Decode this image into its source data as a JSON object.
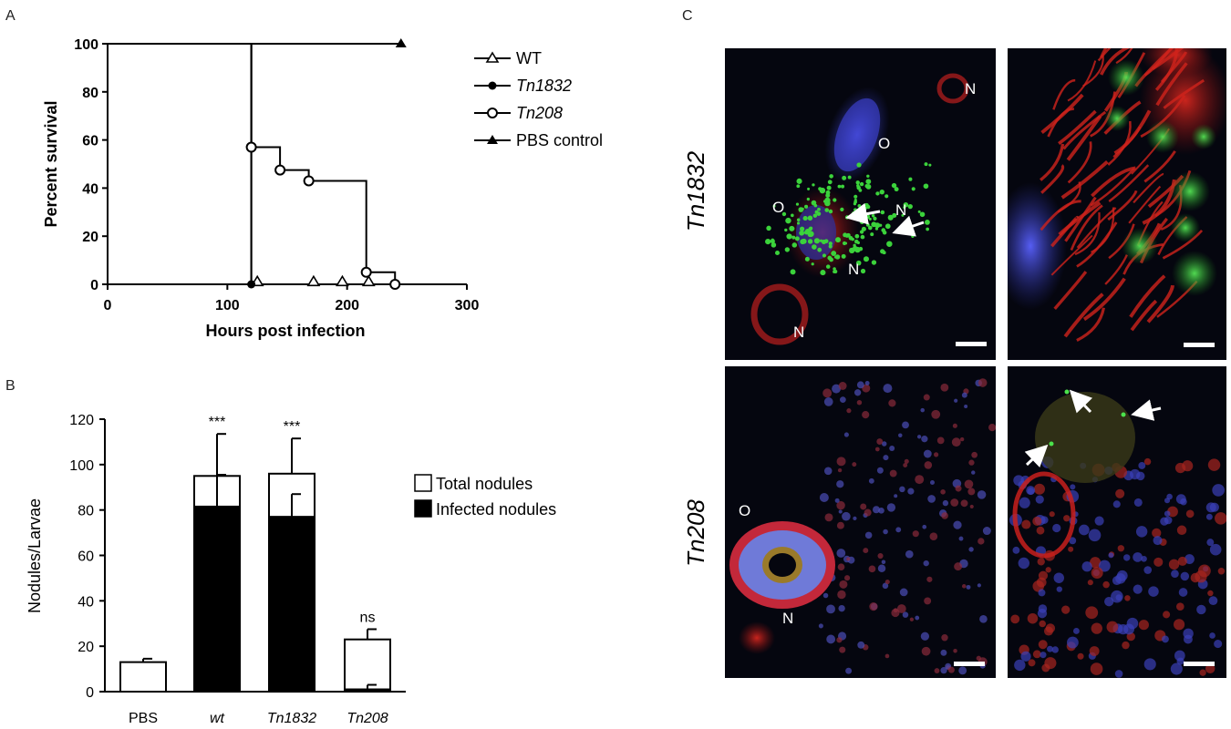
{
  "panels": {
    "a": "A",
    "b": "B",
    "c": "C"
  },
  "chart_data": [
    {
      "type": "line",
      "subtype": "kaplan-meier step",
      "xlabel": "Hours post infection",
      "ylabel": "Percent survival",
      "xlim": [
        0,
        300
      ],
      "ylim": [
        0,
        100
      ],
      "xticks": [
        "0",
        "100",
        "200",
        "300"
      ],
      "yticks": [
        "0",
        "20",
        "40",
        "60",
        "80",
        "100"
      ],
      "legend_position": "right",
      "series": [
        {
          "name": "WT",
          "italic": false,
          "marker": "triangle-open",
          "points": [
            [
              0,
              100
            ],
            [
              120,
              100
            ],
            [
              120,
              0
            ],
            [
              218,
              0
            ]
          ],
          "markers": [
            [
              125,
              1
            ],
            [
              172,
              1
            ],
            [
              196,
              1
            ],
            [
              218,
              1
            ]
          ]
        },
        {
          "name": "Tn1832",
          "italic": true,
          "marker": "circle-filled",
          "points": [
            [
              0,
              100
            ],
            [
              120,
              100
            ],
            [
              120,
              0
            ],
            [
              218,
              0
            ]
          ],
          "markers": [
            [
              120,
              0
            ]
          ]
        },
        {
          "name": "Tn208",
          "italic": true,
          "marker": "circle-open",
          "points": [
            [
              0,
              100
            ],
            [
              120,
              100
            ],
            [
              120,
              57
            ],
            [
              144,
              57
            ],
            [
              144,
              47.5
            ],
            [
              168,
              47.5
            ],
            [
              168,
              43
            ],
            [
              216,
              43
            ],
            [
              216,
              5
            ],
            [
              240,
              5
            ],
            [
              240,
              0
            ]
          ],
          "markers": [
            [
              120,
              57
            ],
            [
              144,
              47.5
            ],
            [
              168,
              43
            ],
            [
              216,
              5
            ],
            [
              240,
              0
            ]
          ]
        },
        {
          "name": "PBS control",
          "italic": false,
          "marker": "triangle-filled",
          "points": [
            [
              0,
              100
            ],
            [
              245,
              100
            ]
          ],
          "markers": [
            [
              245,
              100
            ]
          ]
        }
      ]
    },
    {
      "type": "bar",
      "subtype": "overlaid",
      "ylabel": "Nodules/Larvae",
      "ylim": [
        0,
        120
      ],
      "yticks": [
        "0",
        "20",
        "40",
        "60",
        "80",
        "100",
        "120"
      ],
      "categories": [
        {
          "label": "PBS",
          "italic": false
        },
        {
          "label": "wt",
          "italic": true
        },
        {
          "label": "Tn1832",
          "italic": true
        },
        {
          "label": "Tn208",
          "italic": true
        }
      ],
      "legend_position": "right",
      "series": [
        {
          "name": "Total nodules",
          "fill": "#ffffff",
          "values": [
            13,
            95,
            96,
            23
          ],
          "errors": [
            1.5,
            18.5,
            15.5,
            4.5
          ]
        },
        {
          "name": "Infected nodules",
          "fill": "#000000",
          "values": [
            0,
            81.5,
            77,
            1
          ],
          "errors": [
            0,
            14,
            10,
            2
          ]
        }
      ],
      "annotations": [
        "",
        "***",
        "***",
        "ns"
      ]
    }
  ],
  "micrographs": {
    "rows": [
      {
        "label": "Tn1832",
        "left": [
          "N",
          "O",
          "O",
          "N",
          "N",
          "N"
        ],
        "right": []
      },
      {
        "label": "Tn208",
        "left": [
          "O",
          "N"
        ],
        "right": []
      }
    ],
    "colors": {
      "background": "#05060f",
      "red": "#c8201c",
      "green": "#3bd23b",
      "blue": "#3a3fc8"
    }
  }
}
